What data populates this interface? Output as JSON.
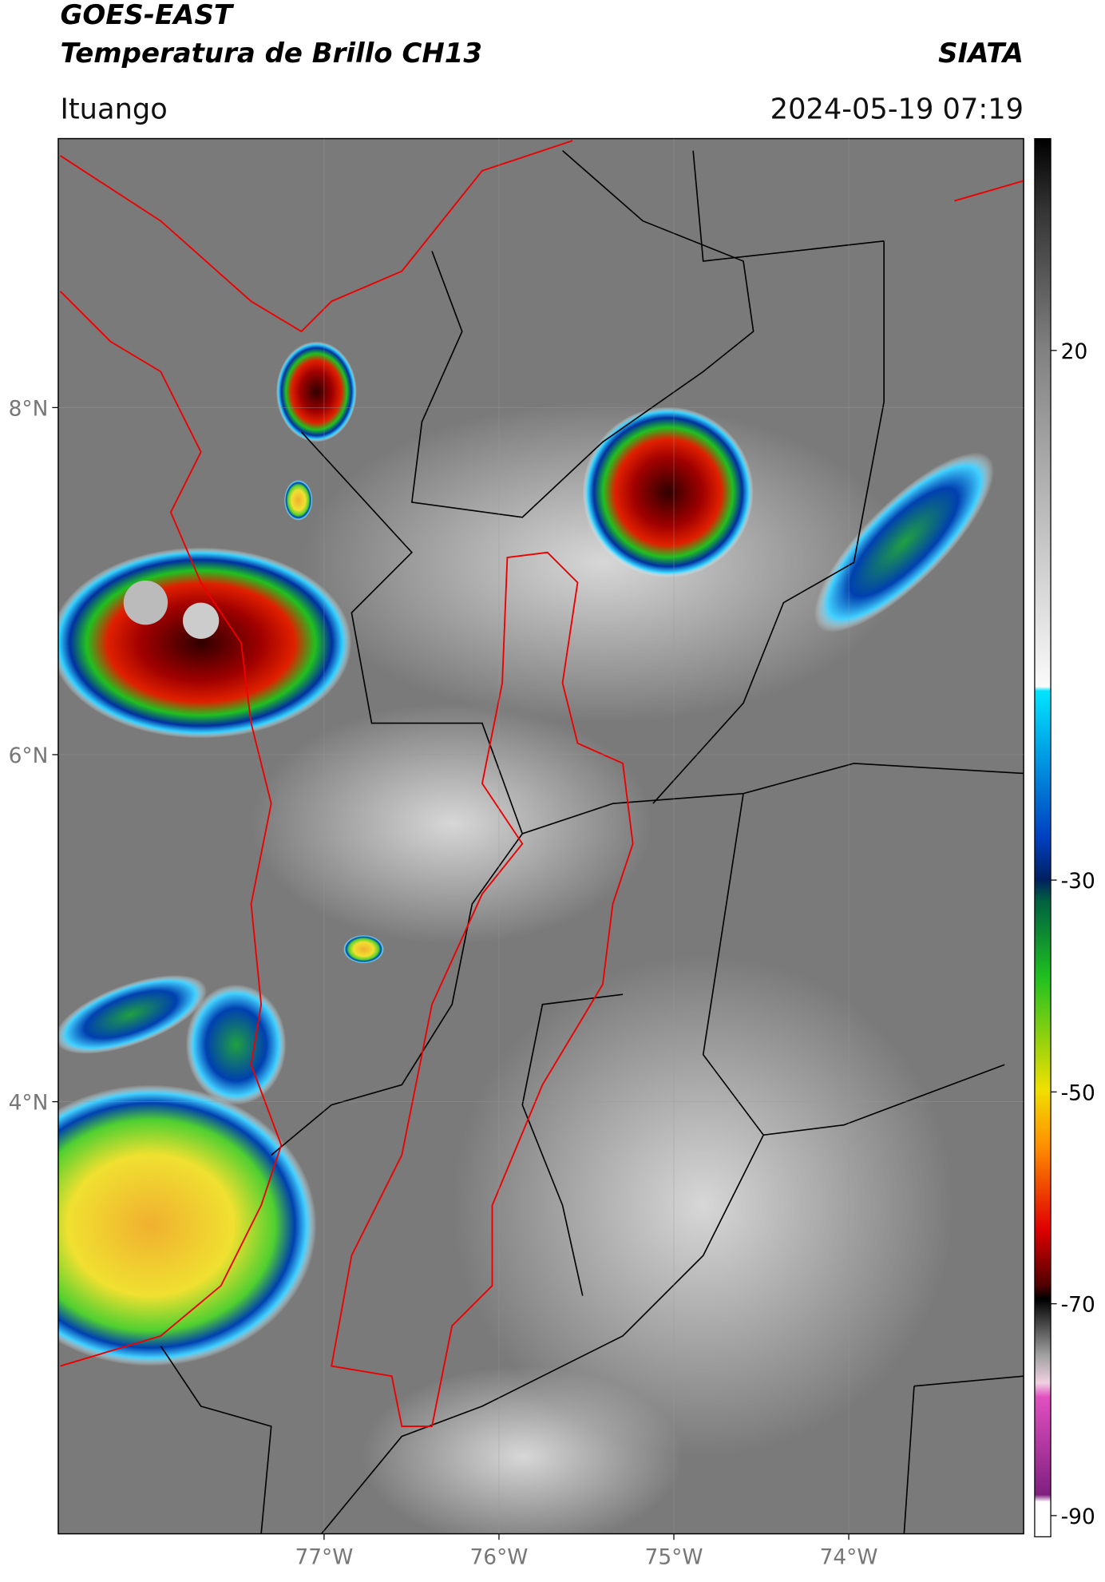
{
  "header": {
    "title": "GOES-EAST",
    "subtitle": "Temperatura de Brillo CH13",
    "source": "SIATA",
    "region": "Ituango",
    "datetime": "2024-05-19 07:19"
  },
  "map": {
    "xlim": [
      -78.52,
      -73.0
    ],
    "ylim": [
      1.51,
      9.55
    ],
    "xticks": [
      {
        "value": -77,
        "label": "77°W"
      },
      {
        "value": -76,
        "label": "76°W"
      },
      {
        "value": -75,
        "label": "75°W"
      },
      {
        "value": -74,
        "label": "74°W"
      }
    ],
    "yticks": [
      {
        "value": 8,
        "label": "8°N"
      },
      {
        "value": 6,
        "label": "6°N"
      },
      {
        "value": 4,
        "label": "4°N"
      }
    ]
  },
  "colorbar": {
    "lim": [
      -92,
      40
    ],
    "ticks": [
      20,
      -30,
      -50,
      -70,
      -90
    ]
  }
}
